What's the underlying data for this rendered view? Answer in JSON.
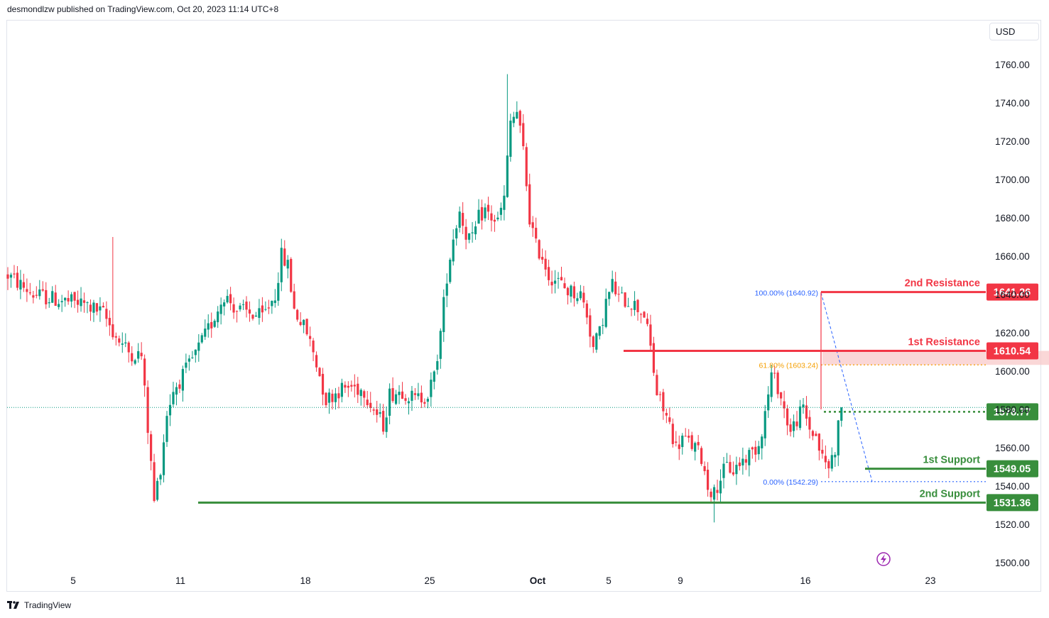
{
  "header": {
    "publisher_line": "desmondlzw published on TradingView.com, Oct 20, 2023 11:14 UTC+8"
  },
  "footer": {
    "brand": "TradingView"
  },
  "currency_button": "USD",
  "colors": {
    "up": "#089981",
    "down": "#f23645",
    "resistance": "#f23645",
    "support": "#388e3c",
    "fib_blue": "#2962ff",
    "fib_orange": "#f59f00",
    "zone": "#f8c9c9"
  },
  "chart_data": {
    "type": "candlestick",
    "ylim": [
      1495,
      1770
    ],
    "y_ticks": [
      1500,
      1520,
      1540,
      1560,
      1580,
      1600,
      1620,
      1640,
      1660,
      1680,
      1700,
      1720,
      1740,
      1760
    ],
    "y_tick_labels": [
      "1500.00",
      "1520.00",
      "1540.00",
      "1560.00",
      "1580.00",
      "1600.00",
      "1620.00",
      "1640.00",
      "1660.00",
      "1680.00",
      "1700.00",
      "1720.00",
      "1740.00",
      "1760.00"
    ],
    "x_ticks": [
      {
        "label": "5",
        "bold": false
      },
      {
        "label": "11",
        "bold": false
      },
      {
        "label": "18",
        "bold": false
      },
      {
        "label": "25",
        "bold": false
      },
      {
        "label": "Oct",
        "bold": true
      },
      {
        "label": "5",
        "bold": false
      },
      {
        "label": "9",
        "bold": false
      },
      {
        "label": "16",
        "bold": false
      },
      {
        "label": "23",
        "bold": false
      }
    ],
    "price_anchors": [
      [
        0,
        1650
      ],
      [
        8,
        1640
      ],
      [
        16,
        1637
      ],
      [
        24,
        1635
      ],
      [
        30,
        1630
      ],
      [
        34,
        1618
      ],
      [
        38,
        1610
      ],
      [
        42,
        1608
      ],
      [
        44,
        1570
      ],
      [
        46,
        1532
      ],
      [
        48,
        1550
      ],
      [
        50,
        1578
      ],
      [
        52,
        1590
      ],
      [
        56,
        1600
      ],
      [
        60,
        1612
      ],
      [
        64,
        1625
      ],
      [
        68,
        1640
      ],
      [
        72,
        1632
      ],
      [
        76,
        1630
      ],
      [
        80,
        1628
      ],
      [
        84,
        1640
      ],
      [
        86,
        1660
      ],
      [
        88,
        1655
      ],
      [
        90,
        1632
      ],
      [
        94,
        1620
      ],
      [
        96,
        1610
      ],
      [
        98,
        1598
      ],
      [
        100,
        1585
      ],
      [
        104,
        1590
      ],
      [
        108,
        1592
      ],
      [
        112,
        1590
      ],
      [
        115,
        1580
      ],
      [
        118,
        1572
      ],
      [
        120,
        1588
      ],
      [
        124,
        1590
      ],
      [
        128,
        1585
      ],
      [
        132,
        1588
      ],
      [
        134,
        1597
      ],
      [
        136,
        1620
      ],
      [
        138,
        1650
      ],
      [
        140,
        1670
      ],
      [
        142,
        1684
      ],
      [
        144,
        1672
      ],
      [
        146,
        1668
      ],
      [
        148,
        1680
      ],
      [
        150,
        1684
      ],
      [
        152,
        1680
      ],
      [
        154,
        1678
      ],
      [
        156,
        1690
      ],
      [
        158,
        1730
      ],
      [
        160,
        1735
      ],
      [
        162,
        1715
      ],
      [
        164,
        1680
      ],
      [
        166,
        1665
      ],
      [
        168,
        1660
      ],
      [
        170,
        1650
      ],
      [
        172,
        1648
      ],
      [
        176,
        1642
      ],
      [
        180,
        1640
      ],
      [
        182,
        1630
      ],
      [
        184,
        1612
      ],
      [
        186,
        1620
      ],
      [
        188,
        1636
      ],
      [
        190,
        1645
      ],
      [
        192,
        1638
      ],
      [
        196,
        1636
      ],
      [
        200,
        1630
      ],
      [
        202,
        1612
      ],
      [
        204,
        1588
      ],
      [
        206,
        1580
      ],
      [
        208,
        1572
      ],
      [
        210,
        1560
      ],
      [
        212,
        1565
      ],
      [
        216,
        1560
      ],
      [
        218,
        1555
      ],
      [
        220,
        1540
      ],
      [
        222,
        1536
      ],
      [
        224,
        1545
      ],
      [
        226,
        1550
      ],
      [
        228,
        1548
      ],
      [
        230,
        1552
      ],
      [
        232,
        1555
      ],
      [
        234,
        1558
      ],
      [
        236,
        1562
      ],
      [
        238,
        1578
      ],
      [
        240,
        1598
      ],
      [
        242,
        1592
      ],
      [
        244,
        1580
      ],
      [
        246,
        1568
      ],
      [
        248,
        1575
      ],
      [
        250,
        1580
      ],
      [
        252,
        1570
      ],
      [
        254,
        1566
      ],
      [
        256,
        1554
      ],
      [
        258,
        1550
      ],
      [
        260,
        1560
      ],
      [
        262,
        1582
      ]
    ],
    "n_candles": 263,
    "current_price": 1581,
    "levels": [
      {
        "name": "2nd Resistance",
        "value": 1641.26,
        "label": "1641.26",
        "kind": "resistance"
      },
      {
        "name": "1st Resistance",
        "value": 1610.54,
        "label": "1610.54",
        "kind": "resistance"
      },
      {
        "name": "",
        "value": 1578.77,
        "label": "1578.77",
        "kind": "pivot"
      },
      {
        "name": "1st Support",
        "value": 1549.05,
        "label": "1549.05",
        "kind": "support"
      },
      {
        "name": "2nd Support",
        "value": 1531.36,
        "label": "1531.36",
        "kind": "support"
      }
    ],
    "fib": [
      {
        "label": "100.00% (1640.92)",
        "value": 1640.92,
        "color": "blue"
      },
      {
        "label": "61.80% (1603.24)",
        "value": 1603.24,
        "color": "orange"
      },
      {
        "label": "0.00% (1542.29)",
        "value": 1542.29,
        "color": "blue"
      }
    ],
    "resistance_zone": [
      1603.24,
      1610.54
    ]
  }
}
